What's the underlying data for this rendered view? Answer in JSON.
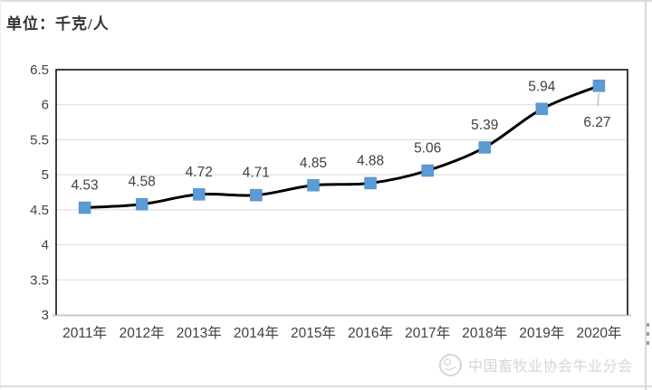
{
  "page": {
    "unit_label": "单位：千克/人",
    "watermark_text": "中国畜牧业协会牛业分会"
  },
  "chart_data": {
    "type": "line",
    "title": "",
    "unit_label": "单位：千克/人",
    "categories": [
      "2011年",
      "2012年",
      "2013年",
      "2014年",
      "2015年",
      "2016年",
      "2017年",
      "2018年",
      "2019年",
      "2020年"
    ],
    "values": [
      4.53,
      4.58,
      4.72,
      4.71,
      4.85,
      4.88,
      5.06,
      5.39,
      5.94,
      6.27
    ],
    "data_labels": [
      "4.53",
      "4.58",
      "4.72",
      "4.71",
      "4.85",
      "4.88",
      "5.06",
      "5.39",
      "5.94",
      "6.27"
    ],
    "ylim": [
      3,
      6.5
    ],
    "ytick_step": 0.5,
    "ytick_labels": [
      "3",
      "3.5",
      "4",
      "4.5",
      "5",
      "5.5",
      "6",
      "6.5"
    ],
    "grid": true,
    "smoothed": true,
    "legend": "none",
    "marker_shape": "square",
    "last_label_position": "below-with-leader",
    "colors": {
      "line": "#000000",
      "marker": "#5b9bd5",
      "gridline": "#d9d9d9",
      "bottom_axis": "#c9c9c9",
      "plot_border": "#000000",
      "axis_text": "#404040",
      "data_label_text": "#404040",
      "leader_line": "#a6a6a6"
    }
  }
}
